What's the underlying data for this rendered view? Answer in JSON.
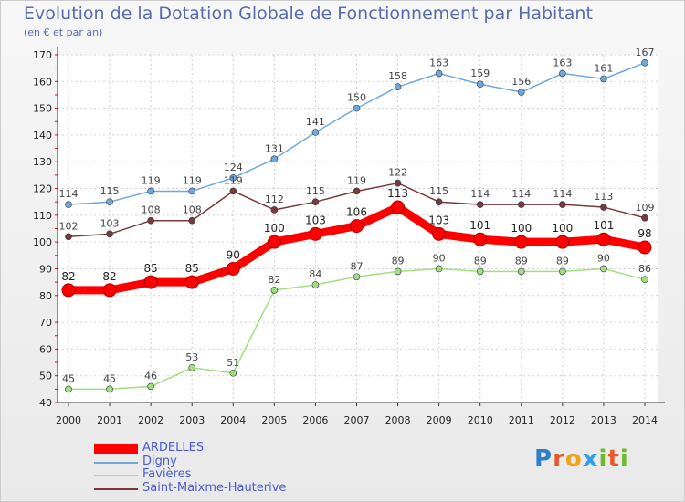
{
  "title": "Evolution de la Dotation Globale de Fonctionnement par Habitant",
  "subtitle": "(en € et par an)",
  "logo_text": "Proxiti",
  "chart_data": {
    "type": "line",
    "title": "Evolution de la Dotation Globale de Fonctionnement par Habitant",
    "subtitle": "(en € et par an)",
    "xlabel": "",
    "ylabel": "",
    "x": [
      "2000",
      "2001",
      "2002",
      "2003",
      "2004",
      "2005",
      "2006",
      "2007",
      "2008",
      "2009",
      "2010",
      "2011",
      "2012",
      "2013",
      "2014"
    ],
    "ylim": [
      40,
      170
    ],
    "yticks": [
      40,
      50,
      60,
      70,
      80,
      90,
      100,
      110,
      120,
      130,
      140,
      150,
      160,
      170
    ],
    "grid": true,
    "series": [
      {
        "name": "ARDELLES",
        "color": "#ff0000",
        "values": [
          82,
          82,
          85,
          85,
          90,
          100,
          103,
          106,
          113,
          103,
          101,
          100,
          100,
          101,
          98
        ]
      },
      {
        "name": "Digny",
        "color": "#6fa8dc",
        "values": [
          114,
          115,
          119,
          119,
          124,
          131,
          141,
          150,
          158,
          163,
          159,
          156,
          163,
          161,
          167
        ]
      },
      {
        "name": "Favières",
        "color": "#9fdf7f",
        "values": [
          45,
          45,
          46,
          53,
          51,
          82,
          84,
          87,
          89,
          90,
          89,
          89,
          89,
          90,
          86
        ]
      },
      {
        "name": "Saint-Maixme-Hauterive",
        "color": "#7a3a3a",
        "values": [
          102,
          103,
          108,
          108,
          119,
          112,
          115,
          119,
          122,
          115,
          114,
          114,
          114,
          113,
          109
        ]
      }
    ]
  }
}
